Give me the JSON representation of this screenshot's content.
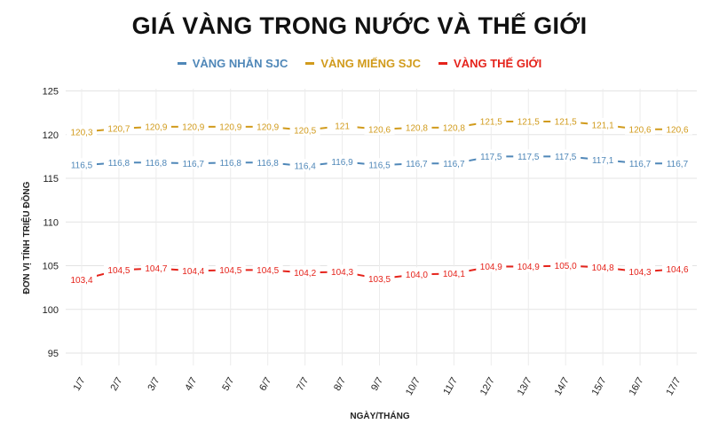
{
  "chart_data": {
    "type": "line",
    "title": "GIÁ VÀNG TRONG NƯỚC VÀ THẾ GIỚI",
    "xlabel": "NGÀY/THÁNG",
    "ylabel": "ĐƠN VỊ TÍNH TRIỆU ĐỒNG",
    "categories": [
      "1/7",
      "2/7",
      "3/7",
      "4/7",
      "5/7",
      "6/7",
      "7/7",
      "8/7",
      "9/7",
      "10/7",
      "11/7",
      "12/7",
      "13/7",
      "14/7",
      "15/7",
      "16/7",
      "17/7"
    ],
    "yticks": [
      "95",
      "100",
      "105",
      "110",
      "115",
      "120",
      "125"
    ],
    "ylim": [
      93,
      125
    ],
    "grid": true,
    "legend_position": "top-center",
    "series": [
      {
        "name": "VÀNG NHẪN SJC",
        "color": "#4f87b8",
        "values": [
          116.5,
          116.8,
          116.8,
          116.7,
          116.8,
          116.8,
          116.4,
          116.9,
          116.5,
          116.7,
          116.7,
          117.5,
          117.5,
          117.5,
          117.1,
          116.7,
          116.7
        ],
        "labels": [
          "116,5",
          "116,8",
          "116,8",
          "116,7",
          "116,8",
          "116,8",
          "116,4",
          "116,9",
          "116,5",
          "116,7",
          "116,7",
          "117,5",
          "117,5",
          "117,5",
          "117,1",
          "116,7",
          "116,7"
        ]
      },
      {
        "name": "VÀNG MIẾNG SJC",
        "color": "#d19b1c",
        "values": [
          120.3,
          120.7,
          120.9,
          120.9,
          120.9,
          120.9,
          120.5,
          121,
          120.6,
          120.8,
          120.8,
          121.5,
          121.5,
          121.5,
          121.1,
          120.6,
          120.6
        ],
        "labels": [
          "120,3",
          "120,7",
          "120,9",
          "120,9",
          "120,9",
          "120,9",
          "120,5",
          "121",
          "120,6",
          "120,8",
          "120,8",
          "121,5",
          "121,5",
          "121,5",
          "121,1",
          "120,6",
          "120,6"
        ]
      },
      {
        "name": "VÀNG THẾ GIỚI",
        "color": "#e5231b",
        "values": [
          103.4,
          104.5,
          104.7,
          104.4,
          104.5,
          104.5,
          104.2,
          104.3,
          103.5,
          104.0,
          104.1,
          104.9,
          104.9,
          105.0,
          104.8,
          104.3,
          104.6
        ],
        "labels": [
          "103,4",
          "104,5",
          "104,7",
          "104,4",
          "104,5",
          "104,5",
          "104,2",
          "104,3",
          "103,5",
          "104,0",
          "104,1",
          "104,9",
          "104,9",
          "105,0",
          "104,8",
          "104,3",
          "104,6"
        ]
      }
    ]
  }
}
